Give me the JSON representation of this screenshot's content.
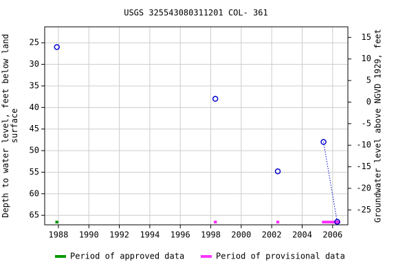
{
  "chart_data": {
    "type": "scatter",
    "title": "USGS 325543080311201 COL- 361",
    "y_label": "Depth to water level, feet below land surface",
    "y2_label": "Groundwater level above NGVD 1929, feet",
    "xlim": [
      1987.1,
      2007.0
    ],
    "xticks": [
      1988,
      1990,
      1992,
      1994,
      1996,
      1998,
      2000,
      2002,
      2004,
      2006
    ],
    "ylim": [
      21.3,
      67.2
    ],
    "y_inverted": true,
    "yticks": [
      25,
      30,
      35,
      40,
      45,
      50,
      55,
      60,
      65
    ],
    "y2lim": [
      17.45,
      -28.45
    ],
    "y2ticks": [
      15,
      10,
      5,
      0,
      -5,
      -10,
      -15,
      -20,
      -25
    ],
    "grid": true,
    "points": {
      "color": "#0000cc",
      "x": [
        1987.9,
        1998.3,
        2002.4,
        2005.4,
        2006.3
      ],
      "values": [
        26,
        38,
        54.8,
        48,
        66.5
      ]
    },
    "periods": [
      {
        "name": "Period of approved data",
        "color": "#009900",
        "ranges": [
          [
            1987.8,
            1988.0
          ]
        ]
      },
      {
        "name": "Period of provisional data",
        "color": "#ff33ff",
        "ranges": [
          [
            1998.2,
            1998.4
          ],
          [
            2002.3,
            2002.5
          ],
          [
            2005.3,
            2006.5
          ]
        ]
      }
    ]
  }
}
